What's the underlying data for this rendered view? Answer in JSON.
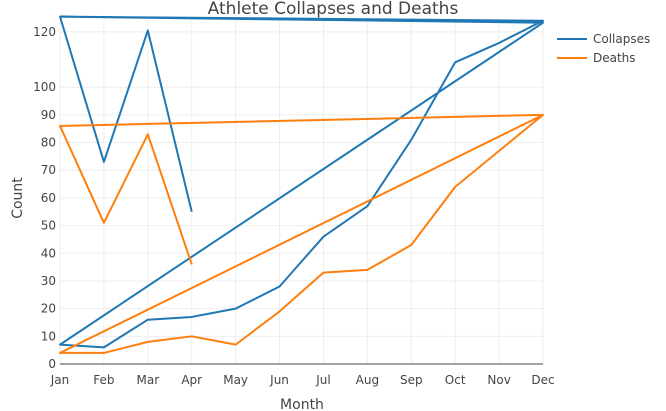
{
  "chart_data": {
    "type": "line",
    "title": "Athlete Collapses and Deaths",
    "xlabel": "Month",
    "ylabel": "Count",
    "categories": [
      "Jan",
      "Feb",
      "Mar",
      "Apr",
      "May",
      "Jun",
      "Jul",
      "Aug",
      "Sep",
      "Oct",
      "Nov",
      "Dec"
    ],
    "ylim": [
      0,
      125
    ],
    "yticks": [
      0,
      10,
      20,
      30,
      40,
      50,
      60,
      70,
      80,
      90,
      100,
      120
    ],
    "grid": true,
    "legend": "top-right",
    "series": [
      {
        "name": "Collapses",
        "color": "#1f77b4",
        "points": [
          [
            "Jan",
            125.5
          ],
          [
            "Dec",
            123.3
          ],
          [
            "Jan",
            7
          ],
          [
            "Feb",
            6
          ],
          [
            "Mar",
            16
          ],
          [
            "Apr",
            17
          ],
          [
            "May",
            20
          ],
          [
            "Jun",
            28
          ],
          [
            "Jul",
            46
          ],
          [
            "Aug",
            57
          ],
          [
            "Sep",
            81
          ],
          [
            "Oct",
            109
          ],
          [
            "Nov",
            116
          ],
          [
            "Dec",
            124
          ],
          [
            "Jan",
            125.5
          ],
          [
            "Feb",
            73
          ],
          [
            "Mar",
            120.5
          ],
          [
            "Apr",
            55
          ]
        ]
      },
      {
        "name": "Deaths",
        "color": "#ff7f0e",
        "points": [
          [
            "Jan",
            86
          ],
          [
            "Dec",
            90
          ],
          [
            "Jan",
            4
          ],
          [
            "Feb",
            4
          ],
          [
            "Mar",
            8
          ],
          [
            "Apr",
            10
          ],
          [
            "May",
            7
          ],
          [
            "Jun",
            19
          ],
          [
            "Jul",
            33
          ],
          [
            "Aug",
            34
          ],
          [
            "Sep",
            43
          ],
          [
            "Oct",
            64
          ],
          [
            "Nov",
            77
          ],
          [
            "Dec",
            90
          ],
          [
            "Jan",
            86
          ],
          [
            "Feb",
            51
          ],
          [
            "Mar",
            83
          ],
          [
            "Apr",
            36
          ]
        ]
      }
    ]
  }
}
